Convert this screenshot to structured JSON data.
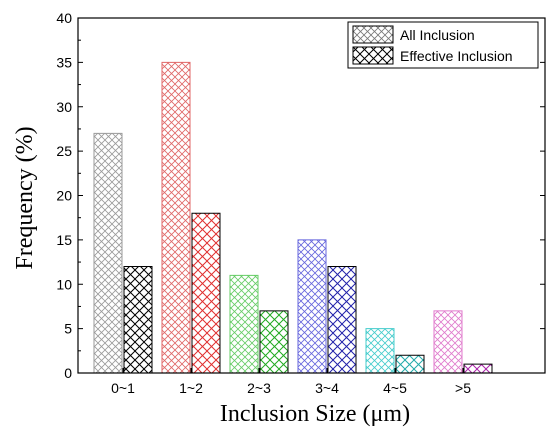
{
  "chart_data": {
    "type": "bar",
    "title": "",
    "xlabel": "Inclusion Size (μm)",
    "ylabel": "Frequency (%)",
    "categories": [
      "0~1",
      "1~2",
      "2~3",
      "3~4",
      "4~5",
      ">5"
    ],
    "ylim": [
      0,
      40
    ],
    "yticks": [
      0,
      5,
      10,
      15,
      20,
      25,
      30,
      35,
      40
    ],
    "grid": false,
    "legend_position": "top-right",
    "series": [
      {
        "name": "All Inclusion",
        "values": [
          27,
          35,
          11,
          15,
          5,
          7
        ],
        "hatch": "diagonal-crosshatch",
        "colors": [
          "#9a9a9a",
          "#e06666",
          "#66cc66",
          "#6666dd",
          "#44cccc",
          "#e07acc"
        ]
      },
      {
        "name": "Effective Inclusion",
        "values": [
          12,
          18,
          7,
          12,
          2,
          1
        ],
        "hatch": "crosshatch",
        "colors": [
          "#000000",
          "#e03030",
          "#22aa22",
          "#2222aa",
          "#22aaaa",
          "#aa22aa"
        ]
      }
    ]
  }
}
